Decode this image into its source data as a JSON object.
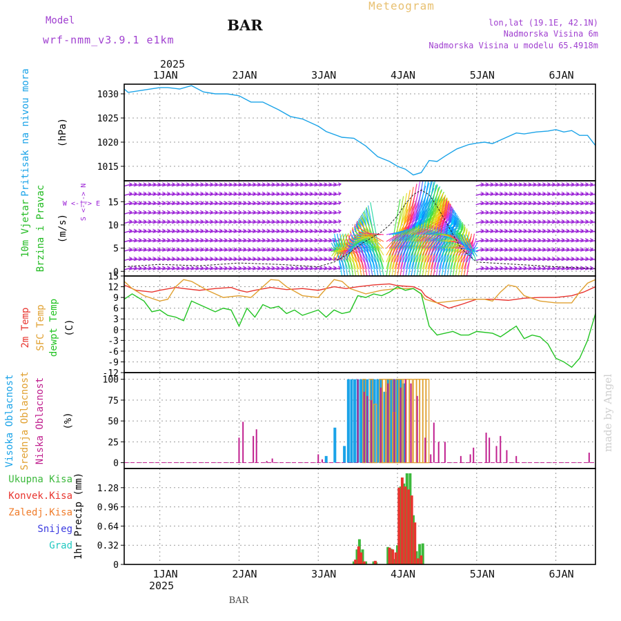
{
  "header": {
    "model_label": "Model",
    "model_name": "wrf-nmm_v3.9.1 e1km",
    "station": "BAR",
    "title": "Meteogram",
    "coords": "lon,lat (19.1E, 42.1N)",
    "elevation": "Nadmorska Visina 6m",
    "model_elevation": "Nadmorska Visina u modelu 65.4918m",
    "footer_station": "BAR",
    "watermark": "made by Angel"
  },
  "colors": {
    "pressure": "#1aa3e8",
    "wind_label": "#22bb22",
    "wind_purple": "#9a1fd6",
    "temp_2m": "#e8342e",
    "temp_sfc": "#e0a030",
    "dewpt": "#22c322",
    "cloud_high": "#1aa3e8",
    "cloud_mid": "#e0a030",
    "cloud_low": "#c0208f",
    "precip_total": "#3cb93c",
    "precip_conv": "#e8342e",
    "precip_frozen": "#f07c2a",
    "precip_snow": "#3a3ae0",
    "precip_graupel": "#20c8c0",
    "title": "#e8c070",
    "header_purple": "#a040d0"
  },
  "time_axis": {
    "year": "2025",
    "top_labels": [
      "1JAN",
      "2JAN",
      "3JAN",
      "4JAN",
      "5JAN",
      "6JAN"
    ],
    "bottom_labels": [
      "1JAN",
      "2JAN",
      "3JAN",
      "4JAN",
      "5JAN",
      "6JAN"
    ],
    "start_day": 0.55,
    "end_day": 6.5
  },
  "chart_data": [
    {
      "type": "line",
      "panel": "pressure",
      "ylabel_title": "Pritisak na nivou mora",
      "ylabel_unit": "(hPa)",
      "yticks": [
        "1015",
        "1020",
        "1025",
        "1030"
      ],
      "ylim": [
        1012,
        1032
      ],
      "x_unit": "days since 1 JAN 00Z",
      "x": [
        0.55,
        0.6,
        0.8,
        1.0,
        1.1,
        1.25,
        1.4,
        1.55,
        1.7,
        1.85,
        2.0,
        2.15,
        2.3,
        2.5,
        2.65,
        2.8,
        3.0,
        3.1,
        3.3,
        3.45,
        3.6,
        3.75,
        3.9,
        4.0,
        4.1,
        4.2,
        4.3,
        4.4,
        4.5,
        4.6,
        4.75,
        4.9,
        5.0,
        5.1,
        5.2,
        5.35,
        5.5,
        5.6,
        5.75,
        5.9,
        6.0,
        6.1,
        6.2,
        6.3,
        6.4,
        6.5
      ],
      "values": [
        1031.0,
        1030.3,
        1030.8,
        1031.3,
        1031.3,
        1031.0,
        1031.7,
        1030.4,
        1030.0,
        1030.0,
        1029.6,
        1028.3,
        1028.3,
        1026.7,
        1025.3,
        1024.8,
        1023.3,
        1022.2,
        1021.0,
        1020.8,
        1019.2,
        1017.0,
        1016.0,
        1015.0,
        1014.4,
        1013.2,
        1013.7,
        1016.2,
        1016.0,
        1017.1,
        1018.6,
        1019.5,
        1019.8,
        1020.0,
        1019.7,
        1020.8,
        1021.9,
        1021.7,
        1022.1,
        1022.3,
        1022.6,
        1022.1,
        1022.4,
        1021.4,
        1021.4,
        1019.3
      ]
    },
    {
      "type": "line",
      "panel": "wind",
      "ylabel_title": "10m Vjetar",
      "ylabel_title2": "Brzina i Pravac",
      "ylabel_unit": "(m/s)",
      "compass": "W <-|-> E",
      "compass_vertical": "S <-|-> N",
      "yticks": [
        "0",
        "5",
        "10",
        "15"
      ],
      "ylim": [
        -1,
        19.5
      ],
      "x_unit": "days since 1 JAN 00Z",
      "x": [
        0.55,
        1.0,
        1.5,
        2.0,
        2.5,
        3.0,
        3.2,
        3.4,
        3.55,
        3.7,
        3.8,
        3.9,
        4.0,
        4.1,
        4.2,
        4.3,
        4.4,
        4.5,
        4.6,
        4.7,
        4.8,
        5.0,
        5.5,
        6.0,
        6.5
      ],
      "values": [
        1.0,
        1.5,
        1.2,
        1.8,
        1.5,
        1.0,
        2.0,
        4.0,
        6.0,
        7.5,
        8.5,
        10.0,
        12.0,
        14.5,
        16.5,
        17.5,
        16.5,
        14.0,
        11.0,
        8.0,
        5.0,
        2.0,
        1.5,
        1.0,
        0.6
      ]
    },
    {
      "type": "line",
      "panel": "temperature",
      "ylabel_title": "2m Temp",
      "ylabel_title2": "SFC Temp",
      "ylabel_title3": "dewpt Temp",
      "ylabel_unit": "(C)",
      "yticks": [
        "-12",
        "-9",
        "-6",
        "-3",
        "0",
        "3",
        "6",
        "9",
        "12",
        "15"
      ],
      "ylim": [
        -12,
        15
      ],
      "x_unit": "days since 1 JAN 00Z",
      "series": [
        {
          "name": "2m Temp",
          "x": [
            0.55,
            0.7,
            0.9,
            1.0,
            1.2,
            1.3,
            1.5,
            1.7,
            1.9,
            2.0,
            2.1,
            2.2,
            2.4,
            2.6,
            2.8,
            3.0,
            3.2,
            3.35,
            3.5,
            3.7,
            3.9,
            4.0,
            4.2,
            4.3,
            4.35,
            4.5,
            4.65,
            4.8,
            5.0,
            5.2,
            5.4,
            5.6,
            5.8,
            6.0,
            6.2,
            6.35,
            6.5
          ],
          "values": [
            12.5,
            11.0,
            10.5,
            11.0,
            11.8,
            11.5,
            11.0,
            11.5,
            11.8,
            11.0,
            10.5,
            11.0,
            11.8,
            11.2,
            11.5,
            11.0,
            12.0,
            11.5,
            12.0,
            12.5,
            12.8,
            12.3,
            12.0,
            11.0,
            9.5,
            7.5,
            6.0,
            7.0,
            8.5,
            8.5,
            8.2,
            8.8,
            9.0,
            9.0,
            9.5,
            10.5,
            12.0
          ]
        },
        {
          "name": "SFC Temp",
          "x": [
            0.55,
            0.65,
            0.8,
            1.0,
            1.1,
            1.2,
            1.3,
            1.4,
            1.6,
            1.8,
            2.0,
            2.15,
            2.3,
            2.4,
            2.5,
            2.6,
            2.8,
            3.0,
            3.1,
            3.2,
            3.3,
            3.4,
            3.6,
            3.8,
            4.0,
            4.2,
            4.3,
            4.35,
            4.5,
            4.7,
            4.9,
            5.1,
            5.2,
            5.3,
            5.4,
            5.5,
            5.6,
            5.8,
            6.0,
            6.2,
            6.3,
            6.4,
            6.5
          ],
          "values": [
            13.5,
            11.5,
            9.5,
            8.0,
            8.5,
            12.0,
            14.0,
            13.5,
            11.0,
            9.0,
            9.5,
            9.0,
            12.0,
            14.0,
            13.8,
            12.0,
            9.5,
            9.0,
            11.5,
            14.0,
            13.5,
            11.5,
            10.0,
            11.0,
            11.5,
            11.5,
            10.0,
            8.5,
            7.5,
            8.0,
            8.5,
            8.5,
            8.0,
            10.5,
            12.5,
            12.0,
            9.5,
            8.0,
            7.5,
            7.5,
            10.5,
            13.0,
            14.0
          ]
        },
        {
          "name": "dewpt Temp",
          "x": [
            0.55,
            0.65,
            0.8,
            0.9,
            1.0,
            1.1,
            1.2,
            1.3,
            1.4,
            1.5,
            1.6,
            1.7,
            1.8,
            1.9,
            2.0,
            2.05,
            2.1,
            2.2,
            2.3,
            2.4,
            2.5,
            2.6,
            2.7,
            2.8,
            3.0,
            3.1,
            3.2,
            3.3,
            3.4,
            3.5,
            3.6,
            3.7,
            3.8,
            3.9,
            4.0,
            4.1,
            4.2,
            4.3,
            4.4,
            4.5,
            4.6,
            4.7,
            4.8,
            4.9,
            5.0,
            5.2,
            5.3,
            5.4,
            5.5,
            5.6,
            5.7,
            5.8,
            5.9,
            6.0,
            6.1,
            6.2,
            6.3,
            6.4,
            6.5
          ],
          "values": [
            8.5,
            10.0,
            8.0,
            5.0,
            5.5,
            4.0,
            3.5,
            2.5,
            8.0,
            7.0,
            6.0,
            5.0,
            6.0,
            5.5,
            1.0,
            3.5,
            6.0,
            3.5,
            7.0,
            6.0,
            6.5,
            4.5,
            5.5,
            4.0,
            5.5,
            3.5,
            5.5,
            4.5,
            5.0,
            9.5,
            9.0,
            10.0,
            9.5,
            10.5,
            12.0,
            11.0,
            11.5,
            10.0,
            1.0,
            -1.5,
            -1.0,
            -0.5,
            -1.5,
            -1.5,
            -0.5,
            -1.0,
            -2.0,
            -0.5,
            1.0,
            -2.5,
            -1.5,
            -2.0,
            -4.0,
            -8.0,
            -9.0,
            -10.5,
            -8.0,
            -3.0,
            4.5
          ]
        }
      ]
    },
    {
      "type": "bar",
      "panel": "cloud",
      "ylabel_title": "Visoka Oblacnost",
      "ylabel_title2": "Srednja Oblacnost",
      "ylabel_title3": "Niska Oblacnost",
      "ylabel_unit": "(%)",
      "yticks": [
        "0",
        "25",
        "50",
        "75",
        "100"
      ],
      "ylim": [
        -7,
        108
      ],
      "x_unit": "days since 1 JAN 00Z",
      "series": [
        {
          "name": "Visoka Oblacnost",
          "x": [
            3.1,
            3.21,
            3.33,
            3.38,
            3.42,
            3.46,
            3.5,
            3.54,
            3.58,
            3.62,
            3.67,
            3.71,
            3.75,
            3.79,
            3.84,
            3.88,
            3.92,
            3.96,
            4.0,
            4.04,
            4.08
          ],
          "values": [
            8,
            42,
            20,
            100,
            100,
            100,
            100,
            100,
            100,
            100,
            100,
            100,
            100,
            100,
            85,
            100,
            100,
            100,
            100,
            100,
            95
          ]
        },
        {
          "name": "Srednja Oblacnost",
          "x": [
            3.58,
            3.67,
            3.72,
            3.79,
            3.83,
            3.88,
            3.92,
            3.96,
            4.0,
            4.04,
            4.09,
            4.13,
            4.17,
            4.22,
            4.26,
            4.3,
            4.34,
            4.38
          ],
          "values": [
            100,
            100,
            70,
            100,
            100,
            100,
            100,
            60,
            100,
            100,
            100,
            100,
            100,
            100,
            100,
            100,
            100,
            100
          ]
        },
        {
          "name": "Niska Oblacnost",
          "x": [
            2.0,
            2.05,
            2.18,
            2.22,
            2.35,
            2.42,
            3.0,
            3.05,
            3.5,
            3.58,
            3.62,
            3.67,
            3.79,
            3.88,
            3.96,
            4.04,
            4.1,
            4.17,
            4.25,
            4.35,
            4.42,
            4.46,
            4.52,
            4.6,
            4.8,
            4.92,
            4.96,
            5.12,
            5.16,
            5.25,
            5.3,
            5.38,
            5.5,
            6.42
          ],
          "values": [
            30,
            49,
            32,
            40,
            2,
            5,
            10,
            4,
            100,
            85,
            80,
            75,
            90,
            95,
            100,
            90,
            100,
            95,
            80,
            30,
            10,
            48,
            25,
            25,
            8,
            10,
            18,
            36,
            30,
            20,
            32,
            15,
            8,
            12
          ]
        }
      ]
    },
    {
      "type": "bar",
      "panel": "precip",
      "ylabel_title": "1hr Precip (mm)",
      "yticks": [
        "0",
        "0.32",
        "0.64",
        "0.96",
        "1.28"
      ],
      "ylim": [
        0,
        1.6
      ],
      "x_unit": "days since 1 JAN 00Z",
      "legend": [
        "Ukupna Kisa",
        "Konvek.Kisa",
        "Zaledj.Kisa",
        "Snijeg",
        "Grad"
      ],
      "series": [
        {
          "name": "Ukupna Kisa",
          "x": [
            3.45,
            3.49,
            3.52,
            3.56,
            3.6,
            3.7,
            3.73,
            3.88,
            3.92,
            3.96,
            4.0,
            4.04,
            4.08,
            4.12,
            4.16,
            4.2,
            4.24,
            4.28,
            4.32
          ],
          "values": [
            0.05,
            0.25,
            0.42,
            0.25,
            0.05,
            0.05,
            0.04,
            0.29,
            0.26,
            0.09,
            0.32,
            1.3,
            1.35,
            1.52,
            1.52,
            0.82,
            0.22,
            0.34,
            0.35
          ]
        },
        {
          "name": "Konvek.Kisa",
          "x": [
            3.47,
            3.51,
            3.54,
            3.58,
            3.72,
            3.9,
            3.94,
            3.98,
            4.02,
            4.06,
            4.1,
            4.14,
            4.18,
            4.22,
            4.26,
            4.3
          ],
          "values": [
            0.08,
            0.3,
            0.2,
            0.05,
            0.06,
            0.28,
            0.25,
            0.2,
            1.28,
            1.45,
            1.3,
            1.25,
            1.15,
            0.7,
            0.1,
            0.15
          ]
        }
      ]
    }
  ]
}
